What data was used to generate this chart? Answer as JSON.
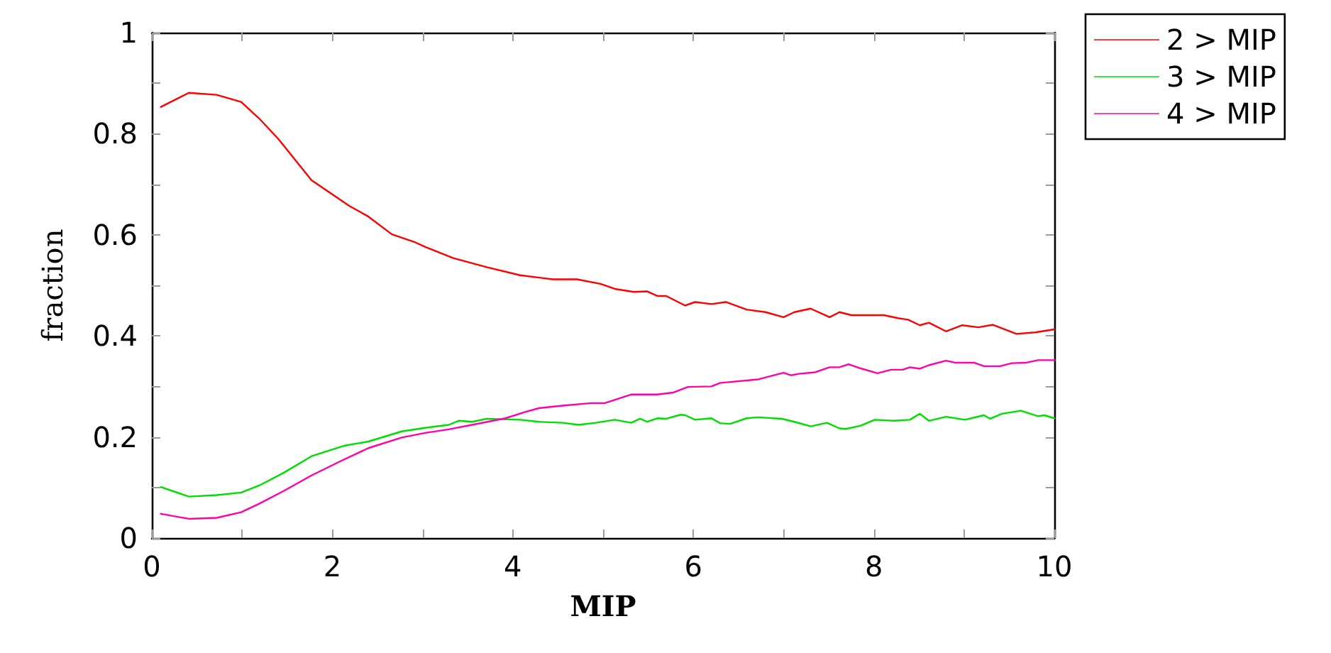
{
  "chart_data": {
    "type": "line",
    "xlabel": "MIP",
    "ylabel": "fraction",
    "xlim": [
      0,
      10
    ],
    "ylim": [
      0,
      1
    ],
    "xticks": [
      0,
      2,
      4,
      6,
      8,
      10
    ],
    "yticks": [
      0,
      0.2,
      0.4,
      0.6,
      0.8,
      1
    ],
    "grid": false,
    "legend": "top right",
    "marker": "none",
    "line_style": "solid",
    "series": [
      {
        "name": "2 > MIP",
        "color": "#ff0000",
        "x": [
          0.1,
          0.41,
          0.72,
          0.99,
          1.19,
          1.4,
          1.77,
          2.19,
          2.4,
          2.66,
          2.92,
          3.03,
          3.34,
          3.71,
          4.08,
          4.44,
          4.71,
          4.97,
          5.13,
          5.34,
          5.49,
          5.6,
          5.7,
          5.91,
          6.02,
          6.2,
          6.36,
          6.59,
          6.8,
          7.0,
          7.12,
          7.3,
          7.51,
          7.62,
          7.75,
          8.11,
          8.27,
          8.38,
          8.51,
          8.61,
          8.8,
          8.98,
          9.16,
          9.32,
          9.58,
          9.79,
          10.0
        ],
        "values": [
          0.853,
          0.881,
          0.877,
          0.863,
          0.83,
          0.79,
          0.708,
          0.657,
          0.636,
          0.601,
          0.585,
          0.576,
          0.554,
          0.536,
          0.52,
          0.512,
          0.512,
          0.503,
          0.493,
          0.487,
          0.488,
          0.479,
          0.479,
          0.46,
          0.467,
          0.463,
          0.467,
          0.452,
          0.447,
          0.437,
          0.447,
          0.454,
          0.437,
          0.447,
          0.441,
          0.441,
          0.435,
          0.432,
          0.421,
          0.426,
          0.409,
          0.421,
          0.417,
          0.422,
          0.404,
          0.407,
          0.413
        ]
      },
      {
        "name": "3 > MIP",
        "color": "#00dd00",
        "x": [
          0.1,
          0.41,
          0.72,
          0.99,
          1.19,
          1.46,
          1.77,
          2.14,
          2.4,
          2.77,
          3.03,
          3.29,
          3.4,
          3.55,
          3.71,
          4.08,
          4.29,
          4.55,
          4.73,
          4.92,
          5.13,
          5.31,
          5.41,
          5.49,
          5.6,
          5.7,
          5.86,
          5.91,
          6.02,
          6.2,
          6.3,
          6.41,
          6.59,
          6.72,
          6.98,
          7.12,
          7.3,
          7.48,
          7.62,
          7.69,
          7.85,
          8.01,
          8.22,
          8.4,
          8.51,
          8.61,
          8.8,
          9.01,
          9.22,
          9.29,
          9.42,
          9.63,
          9.82,
          9.89,
          10.0
        ],
        "values": [
          0.101,
          0.082,
          0.085,
          0.09,
          0.104,
          0.129,
          0.162,
          0.183,
          0.191,
          0.211,
          0.218,
          0.224,
          0.232,
          0.23,
          0.236,
          0.234,
          0.23,
          0.228,
          0.224,
          0.228,
          0.234,
          0.228,
          0.236,
          0.23,
          0.237,
          0.236,
          0.244,
          0.243,
          0.234,
          0.237,
          0.227,
          0.226,
          0.237,
          0.239,
          0.236,
          0.23,
          0.221,
          0.228,
          0.217,
          0.216,
          0.222,
          0.234,
          0.232,
          0.234,
          0.246,
          0.232,
          0.24,
          0.234,
          0.243,
          0.236,
          0.246,
          0.252,
          0.241,
          0.243,
          0.237
        ]
      },
      {
        "name": "4 > MIP",
        "color": "#ff00aa",
        "x": [
          0.1,
          0.41,
          0.72,
          0.99,
          1.19,
          1.46,
          1.77,
          2.09,
          2.4,
          2.77,
          3.03,
          3.29,
          3.55,
          3.92,
          4.13,
          4.29,
          4.55,
          4.87,
          5.02,
          5.31,
          5.6,
          5.78,
          5.94,
          6.2,
          6.3,
          6.72,
          7.0,
          7.08,
          7.17,
          7.35,
          7.51,
          7.62,
          7.72,
          7.85,
          8.04,
          8.19,
          8.32,
          8.4,
          8.51,
          8.61,
          8.8,
          8.9,
          9.11,
          9.22,
          9.4,
          9.53,
          9.69,
          9.82,
          10.0
        ],
        "values": [
          0.048,
          0.038,
          0.04,
          0.051,
          0.068,
          0.093,
          0.124,
          0.152,
          0.178,
          0.199,
          0.208,
          0.215,
          0.224,
          0.237,
          0.249,
          0.257,
          0.262,
          0.267,
          0.267,
          0.284,
          0.284,
          0.288,
          0.299,
          0.3,
          0.307,
          0.314,
          0.327,
          0.322,
          0.325,
          0.328,
          0.338,
          0.338,
          0.344,
          0.336,
          0.326,
          0.333,
          0.333,
          0.338,
          0.335,
          0.342,
          0.351,
          0.347,
          0.347,
          0.34,
          0.34,
          0.346,
          0.347,
          0.352,
          0.352
        ]
      }
    ]
  }
}
